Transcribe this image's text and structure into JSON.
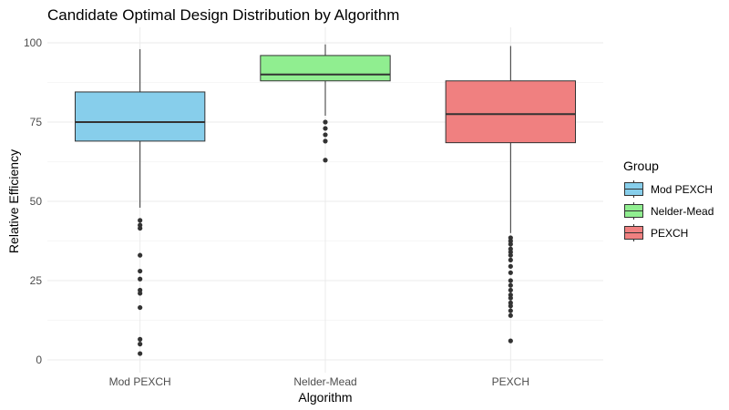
{
  "chart_data": {
    "type": "boxplot",
    "title": "Candidate Optimal Design Distribution by Algorithm",
    "xlabel": "Algorithm",
    "ylabel": "Relative Efficiency",
    "ylim": [
      0,
      100
    ],
    "y_ticks": [
      0,
      25,
      50,
      75,
      100
    ],
    "grid": true,
    "legend": {
      "title": "Group",
      "position": "right",
      "entries": [
        "Mod PEXCH",
        "Nelder-Mead",
        "PEXCH"
      ]
    },
    "categories": [
      "Mod PEXCH",
      "Nelder-Mead",
      "PEXCH"
    ],
    "colors": [
      "#87ceeb",
      "#90ee90",
      "#f08080"
    ],
    "series": [
      {
        "name": "Mod PEXCH",
        "whisker_low": 48,
        "q1": 69,
        "median": 75,
        "q3": 84.5,
        "whisker_high": 98,
        "outliers": [
          44,
          42.5,
          41.5,
          33,
          28,
          25.5,
          22,
          21,
          16.5,
          6.5,
          5,
          2
        ]
      },
      {
        "name": "Nelder-Mead",
        "whisker_low": 77,
        "q1": 88,
        "median": 90,
        "q3": 96,
        "whisker_high": 99.5,
        "outliers": [
          75,
          73,
          71,
          69,
          63
        ]
      },
      {
        "name": "PEXCH",
        "whisker_low": 40,
        "q1": 68.5,
        "median": 77.5,
        "q3": 88,
        "whisker_high": 99,
        "outliers": [
          38.5,
          37.5,
          36.5,
          35,
          34,
          33,
          31.5,
          29.5,
          27.5,
          25,
          23.5,
          22,
          20.5,
          19.5,
          18,
          17,
          15.5,
          14,
          6
        ]
      }
    ]
  }
}
